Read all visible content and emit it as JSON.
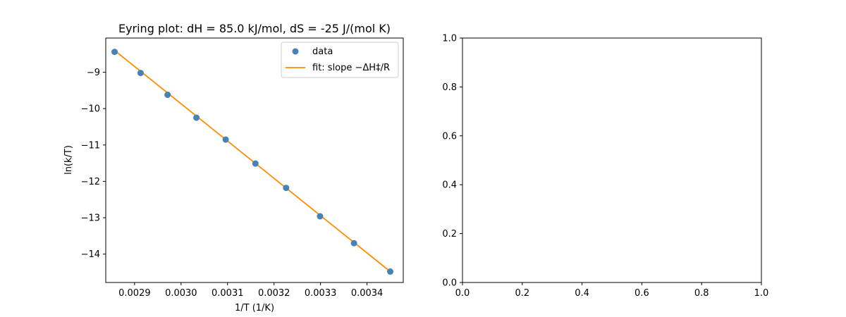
{
  "chart_data": [
    {
      "type": "scatter",
      "title": "Eyring plot: dH = 85.0 kJ/mol, dS = -25 J/(mol K)",
      "xlabel": "1/T (1/K)",
      "ylabel": "ln(k/T)",
      "xlim": [
        0.002838,
        0.003478
      ],
      "ylim": [
        -14.78,
        -8.06
      ],
      "xticks": [
        0.0029,
        0.003,
        0.0031,
        0.0032,
        0.0033,
        0.0034
      ],
      "xtick_labels": [
        "0.0029",
        "0.0030",
        "0.0031",
        "0.0032",
        "0.0033",
        "0.0034"
      ],
      "yticks": [
        -9,
        -10,
        -11,
        -12,
        -13,
        -14
      ],
      "ytick_labels": [
        "−9",
        "−10",
        "−11",
        "−12",
        "−13",
        "−14"
      ],
      "grid": false,
      "legend_position": "top-right",
      "series": [
        {
          "name": "data",
          "kind": "scatter",
          "color": "#4682b4",
          "x": [
            0.002857,
            0.002913,
            0.002971,
            0.003033,
            0.003096,
            0.00316,
            0.003226,
            0.003299,
            0.003372,
            0.00345
          ],
          "y": [
            -8.44,
            -9.02,
            -9.62,
            -10.25,
            -10.85,
            -11.51,
            -12.18,
            -12.96,
            -13.7,
            -14.48
          ]
        },
        {
          "name": "fit: slope −ΔH‡/R",
          "kind": "line",
          "color": "#ff8c00",
          "x": [
            0.002857,
            0.00345
          ],
          "y": [
            -8.4,
            -14.48
          ]
        }
      ]
    },
    {
      "type": "scatter",
      "title": "",
      "xlim": [
        0.0,
        1.0
      ],
      "ylim": [
        0.0,
        1.0
      ],
      "xticks": [
        0.0,
        0.2,
        0.4,
        0.6,
        0.8,
        1.0
      ],
      "xtick_labels": [
        "0.0",
        "0.2",
        "0.4",
        "0.6",
        "0.8",
        "1.0"
      ],
      "yticks": [
        0.0,
        0.2,
        0.4,
        0.6,
        0.8,
        1.0
      ],
      "ytick_labels": [
        "0.0",
        "0.2",
        "0.4",
        "0.6",
        "0.8",
        "1.0"
      ],
      "grid": false,
      "series": []
    }
  ]
}
